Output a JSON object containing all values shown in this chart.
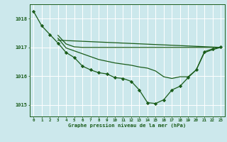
{
  "title": "Graphe pression niveau de la mer (hPa)",
  "bg_color": "#cce8ec",
  "grid_color": "#b0d8dc",
  "line_color": "#1a5c1a",
  "marker_color": "#1a5c1a",
  "xlim": [
    -0.5,
    23.5
  ],
  "ylim": [
    1014.6,
    1018.5
  ],
  "yticks": [
    1015,
    1016,
    1017,
    1018
  ],
  "xticks": [
    0,
    1,
    2,
    3,
    4,
    5,
    6,
    7,
    8,
    9,
    10,
    11,
    12,
    13,
    14,
    15,
    16,
    17,
    18,
    19,
    20,
    21,
    22,
    23
  ],
  "series": [
    {
      "x": [
        0,
        1,
        2,
        3,
        4,
        5,
        6,
        7,
        8,
        9,
        10,
        11,
        12,
        13,
        14,
        15,
        16,
        17,
        18,
        19,
        20,
        21,
        22,
        23
      ],
      "y": [
        1018.25,
        1017.75,
        1017.45,
        1017.15,
        1016.82,
        1016.65,
        1016.35,
        1016.22,
        1016.12,
        1016.08,
        1015.95,
        1015.92,
        1015.82,
        1015.52,
        1015.08,
        1015.05,
        1015.18,
        1015.52,
        1015.65,
        1015.95,
        1016.22,
        1016.85,
        1016.95,
        1017.02
      ],
      "marker": true
    },
    {
      "x": [
        3,
        4,
        5,
        6,
        7,
        8,
        9,
        10,
        11,
        12,
        13,
        14,
        15,
        16,
        17,
        18,
        19,
        20,
        21,
        22,
        23
      ],
      "y": [
        1017.42,
        1017.12,
        1017.02,
        1017.0,
        1017.0,
        1017.0,
        1017.0,
        1017.0,
        1017.0,
        1017.0,
        1017.0,
        1017.0,
        1017.0,
        1017.0,
        1017.0,
        1017.0,
        1017.0,
        1017.0,
        1017.0,
        1017.0,
        1017.0
      ],
      "marker": false
    },
    {
      "x": [
        3,
        4,
        5,
        6,
        7,
        8,
        9,
        10,
        11,
        12,
        13,
        14,
        15,
        16,
        17,
        18,
        19,
        20,
        21,
        22,
        23
      ],
      "y": [
        1017.32,
        1016.98,
        1016.88,
        1016.78,
        1016.68,
        1016.58,
        1016.52,
        1016.46,
        1016.42,
        1016.38,
        1016.32,
        1016.28,
        1016.18,
        1015.98,
        1015.92,
        1015.98,
        1015.98,
        1016.22,
        1016.82,
        1016.92,
        1017.0
      ],
      "marker": false
    },
    {
      "x": [
        3,
        23
      ],
      "y": [
        1017.25,
        1017.0
      ],
      "marker": false
    }
  ]
}
